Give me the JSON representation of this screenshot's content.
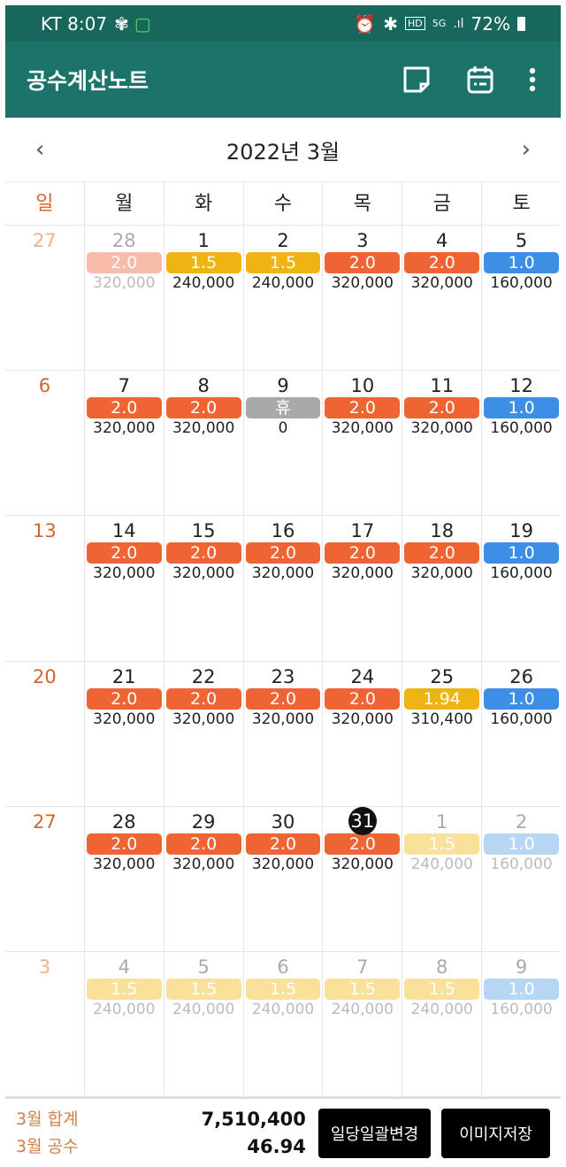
{
  "status_bar": {
    "carrier_time": "KT 8:07",
    "battery": "72%",
    "icons": [
      "fan-icon",
      "screen-icon",
      "alarm-icon",
      "bluetooth-icon",
      "hd-icon",
      "5g-icon",
      "signal-icon",
      "battery-icon"
    ]
  },
  "app": {
    "title": "공수계산노트",
    "icons": [
      "note-icon",
      "calendar-icon",
      "more-icon"
    ]
  },
  "nav": {
    "prev": "‹",
    "month": "2022년 3월",
    "next": "›"
  },
  "weekdays": [
    "일",
    "월",
    "화",
    "수",
    "목",
    "금",
    "토"
  ],
  "colors": {
    "orange": "#ef6433",
    "yellow": "#efb414",
    "blue": "#3c8fe4",
    "gray": "#a9a9a9",
    "header": "#1c7369"
  },
  "weeks": [
    [
      {
        "day": "27",
        "m": "o"
      },
      {
        "day": "28",
        "m": "o",
        "work": "2.0",
        "pay": "320,000",
        "c": "orange"
      },
      {
        "day": "1",
        "work": "1.5",
        "pay": "240,000",
        "c": "yellow"
      },
      {
        "day": "2",
        "work": "1.5",
        "pay": "240,000",
        "c": "yellow"
      },
      {
        "day": "3",
        "work": "2.0",
        "pay": "320,000",
        "c": "orange"
      },
      {
        "day": "4",
        "work": "2.0",
        "pay": "320,000",
        "c": "orange"
      },
      {
        "day": "5",
        "work": "1.0",
        "pay": "160,000",
        "c": "blue"
      }
    ],
    [
      {
        "day": "6"
      },
      {
        "day": "7",
        "work": "2.0",
        "pay": "320,000",
        "c": "orange"
      },
      {
        "day": "8",
        "work": "2.0",
        "pay": "320,000",
        "c": "orange"
      },
      {
        "day": "9",
        "work": "휴",
        "pay": "0",
        "c": "gray"
      },
      {
        "day": "10",
        "work": "2.0",
        "pay": "320,000",
        "c": "orange"
      },
      {
        "day": "11",
        "work": "2.0",
        "pay": "320,000",
        "c": "orange"
      },
      {
        "day": "12",
        "work": "1.0",
        "pay": "160,000",
        "c": "blue"
      }
    ],
    [
      {
        "day": "13"
      },
      {
        "day": "14",
        "work": "2.0",
        "pay": "320,000",
        "c": "orange"
      },
      {
        "day": "15",
        "work": "2.0",
        "pay": "320,000",
        "c": "orange"
      },
      {
        "day": "16",
        "work": "2.0",
        "pay": "320,000",
        "c": "orange"
      },
      {
        "day": "17",
        "work": "2.0",
        "pay": "320,000",
        "c": "orange"
      },
      {
        "day": "18",
        "work": "2.0",
        "pay": "320,000",
        "c": "orange"
      },
      {
        "day": "19",
        "work": "1.0",
        "pay": "160,000",
        "c": "blue"
      }
    ],
    [
      {
        "day": "20"
      },
      {
        "day": "21",
        "work": "2.0",
        "pay": "320,000",
        "c": "orange"
      },
      {
        "day": "22",
        "work": "2.0",
        "pay": "320,000",
        "c": "orange"
      },
      {
        "day": "23",
        "work": "2.0",
        "pay": "320,000",
        "c": "orange"
      },
      {
        "day": "24",
        "work": "2.0",
        "pay": "320,000",
        "c": "orange"
      },
      {
        "day": "25",
        "work": "1.94",
        "pay": "310,400",
        "c": "yellow"
      },
      {
        "day": "26",
        "work": "1.0",
        "pay": "160,000",
        "c": "blue"
      }
    ],
    [
      {
        "day": "27"
      },
      {
        "day": "28",
        "work": "2.0",
        "pay": "320,000",
        "c": "orange"
      },
      {
        "day": "29",
        "work": "2.0",
        "pay": "320,000",
        "c": "orange"
      },
      {
        "day": "30",
        "work": "2.0",
        "pay": "320,000",
        "c": "orange"
      },
      {
        "day": "31",
        "work": "2.0",
        "pay": "320,000",
        "c": "orange",
        "today": true
      },
      {
        "day": "1",
        "m": "o",
        "work": "1.5",
        "pay": "240,000",
        "c": "yellow"
      },
      {
        "day": "2",
        "m": "o",
        "work": "1.0",
        "pay": "160,000",
        "c": "blue"
      }
    ],
    [
      {
        "day": "3",
        "m": "o"
      },
      {
        "day": "4",
        "m": "o",
        "work": "1.5",
        "pay": "240,000",
        "c": "yellow"
      },
      {
        "day": "5",
        "m": "o",
        "work": "1.5",
        "pay": "240,000",
        "c": "yellow"
      },
      {
        "day": "6",
        "m": "o",
        "work": "1.5",
        "pay": "240,000",
        "c": "yellow"
      },
      {
        "day": "7",
        "m": "o",
        "work": "1.5",
        "pay": "240,000",
        "c": "yellow"
      },
      {
        "day": "8",
        "m": "o",
        "work": "1.5",
        "pay": "240,000",
        "c": "yellow"
      },
      {
        "day": "9",
        "m": "o",
        "work": "1.0",
        "pay": "160,000",
        "c": "blue"
      }
    ]
  ],
  "footer": {
    "total_label": "3월 합계",
    "total_value": "7,510,400",
    "work_label": "3월 공수",
    "work_value": "46.94",
    "bulk_button": "일당일괄변경",
    "save_button": "이미지저장"
  }
}
